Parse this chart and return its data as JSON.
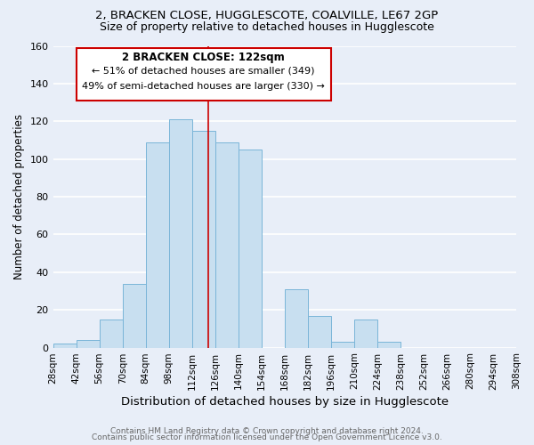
{
  "title": "2, BRACKEN CLOSE, HUGGLESCOTE, COALVILLE, LE67 2GP",
  "subtitle": "Size of property relative to detached houses in Hugglescote",
  "xlabel": "Distribution of detached houses by size in Hugglescote",
  "ylabel": "Number of detached properties",
  "footer_line1": "Contains HM Land Registry data © Crown copyright and database right 2024.",
  "footer_line2": "Contains public sector information licensed under the Open Government Licence v3.0.",
  "bin_edges": [
    28,
    42,
    56,
    70,
    84,
    98,
    112,
    126,
    140,
    154,
    168,
    182,
    196,
    210,
    224,
    238,
    252,
    266,
    280,
    294,
    308
  ],
  "bar_heights": [
    2,
    4,
    15,
    34,
    109,
    121,
    115,
    109,
    105,
    0,
    31,
    17,
    3,
    15,
    3,
    0,
    0,
    0,
    0,
    0
  ],
  "bar_color": "#c8dff0",
  "bar_edge_color": "#7ab5d8",
  "vline_x": 122,
  "vline_color": "#cc0000",
  "annotation_title": "2 BRACKEN CLOSE: 122sqm",
  "annotation_line1": "← 51% of detached houses are smaller (349)",
  "annotation_line2": "49% of semi-detached houses are larger (330) →",
  "annotation_box_color": "#ffffff",
  "annotation_box_edge_color": "#cc0000",
  "ylim": [
    0,
    160
  ],
  "yticks": [
    0,
    20,
    40,
    60,
    80,
    100,
    120,
    140,
    160
  ],
  "tick_labels": [
    "28sqm",
    "42sqm",
    "56sqm",
    "70sqm",
    "84sqm",
    "98sqm",
    "112sqm",
    "126sqm",
    "140sqm",
    "154sqm",
    "168sqm",
    "182sqm",
    "196sqm",
    "210sqm",
    "224sqm",
    "238sqm",
    "252sqm",
    "266sqm",
    "280sqm",
    "294sqm",
    "308sqm"
  ],
  "background_color": "#e8eef8",
  "grid_color": "#ffffff",
  "title_fontsize": 9.5,
  "subtitle_fontsize": 9,
  "xlabel_fontsize": 9.5,
  "ylabel_fontsize": 8.5,
  "footer_fontsize": 6.5
}
